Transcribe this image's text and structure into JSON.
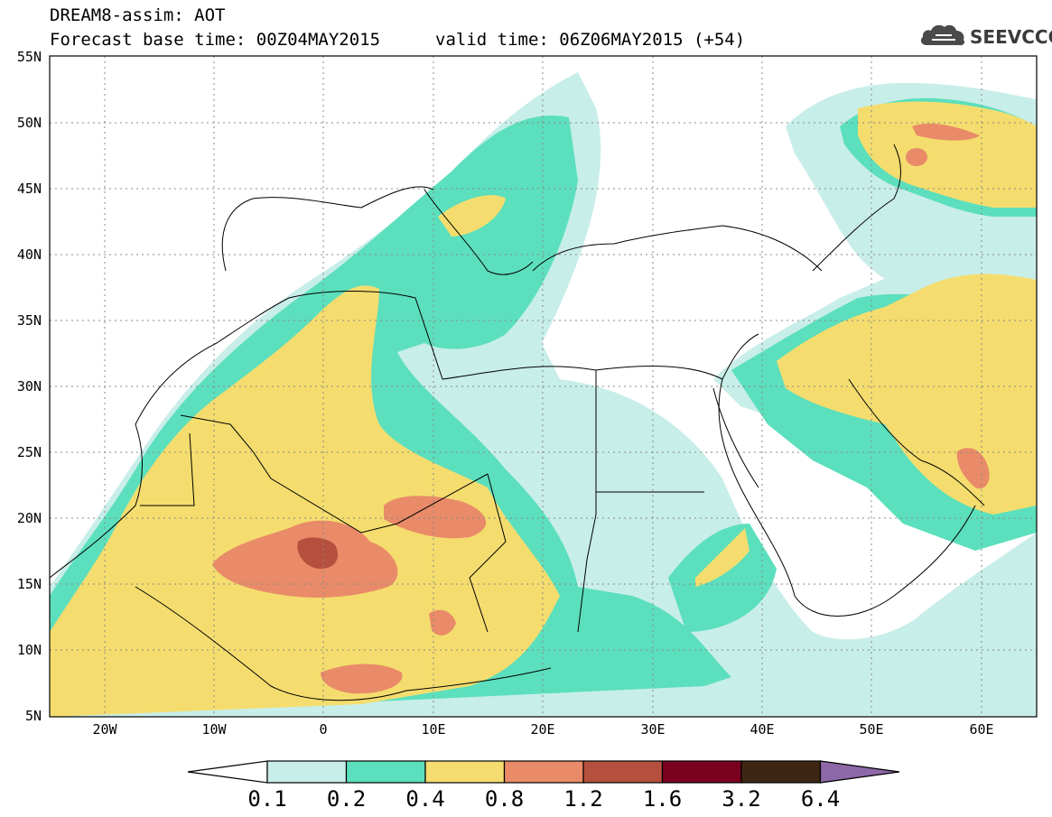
{
  "header": {
    "title": "DREAM8-assim: AOT",
    "base_time": "Forecast base time: 00Z04MAY2015",
    "valid_time": "valid time: 06Z06MAY2015 (+54)",
    "logo_text": "SEEVCCC"
  },
  "axes": {
    "lon_ticks": [
      "20W",
      "10W",
      "0",
      "10E",
      "20E",
      "30E",
      "40E",
      "50E",
      "60E"
    ],
    "lat_ticks": [
      "55N",
      "50N",
      "45N",
      "40N",
      "35N",
      "30N",
      "25N",
      "20N",
      "15N",
      "10N",
      "5N"
    ]
  },
  "colorbar": {
    "levels": [
      "0.1",
      "0.2",
      "0.4",
      "0.8",
      "1.2",
      "1.6",
      "3.2",
      "6.4"
    ],
    "colors": [
      "#ffffff",
      "#c8eee9",
      "#5cdfbd",
      "#f4dd6e",
      "#e98b68",
      "#b6503e",
      "#7a0020",
      "#3e2614",
      "#8c68a8"
    ]
  },
  "chart_data": {
    "type": "heatmap",
    "title": "DREAM8-assim: AOT",
    "variable": "AOT",
    "x_range": [
      -25,
      65
    ],
    "y_range": [
      5,
      55
    ],
    "grid": true,
    "bins": [
      "<0.1",
      "0.1-0.2",
      "0.2-0.4",
      "0.4-0.8",
      "0.8-1.2",
      "1.2-1.6",
      "1.6-3.2",
      "3.2-6.4",
      ">6.4"
    ]
  }
}
